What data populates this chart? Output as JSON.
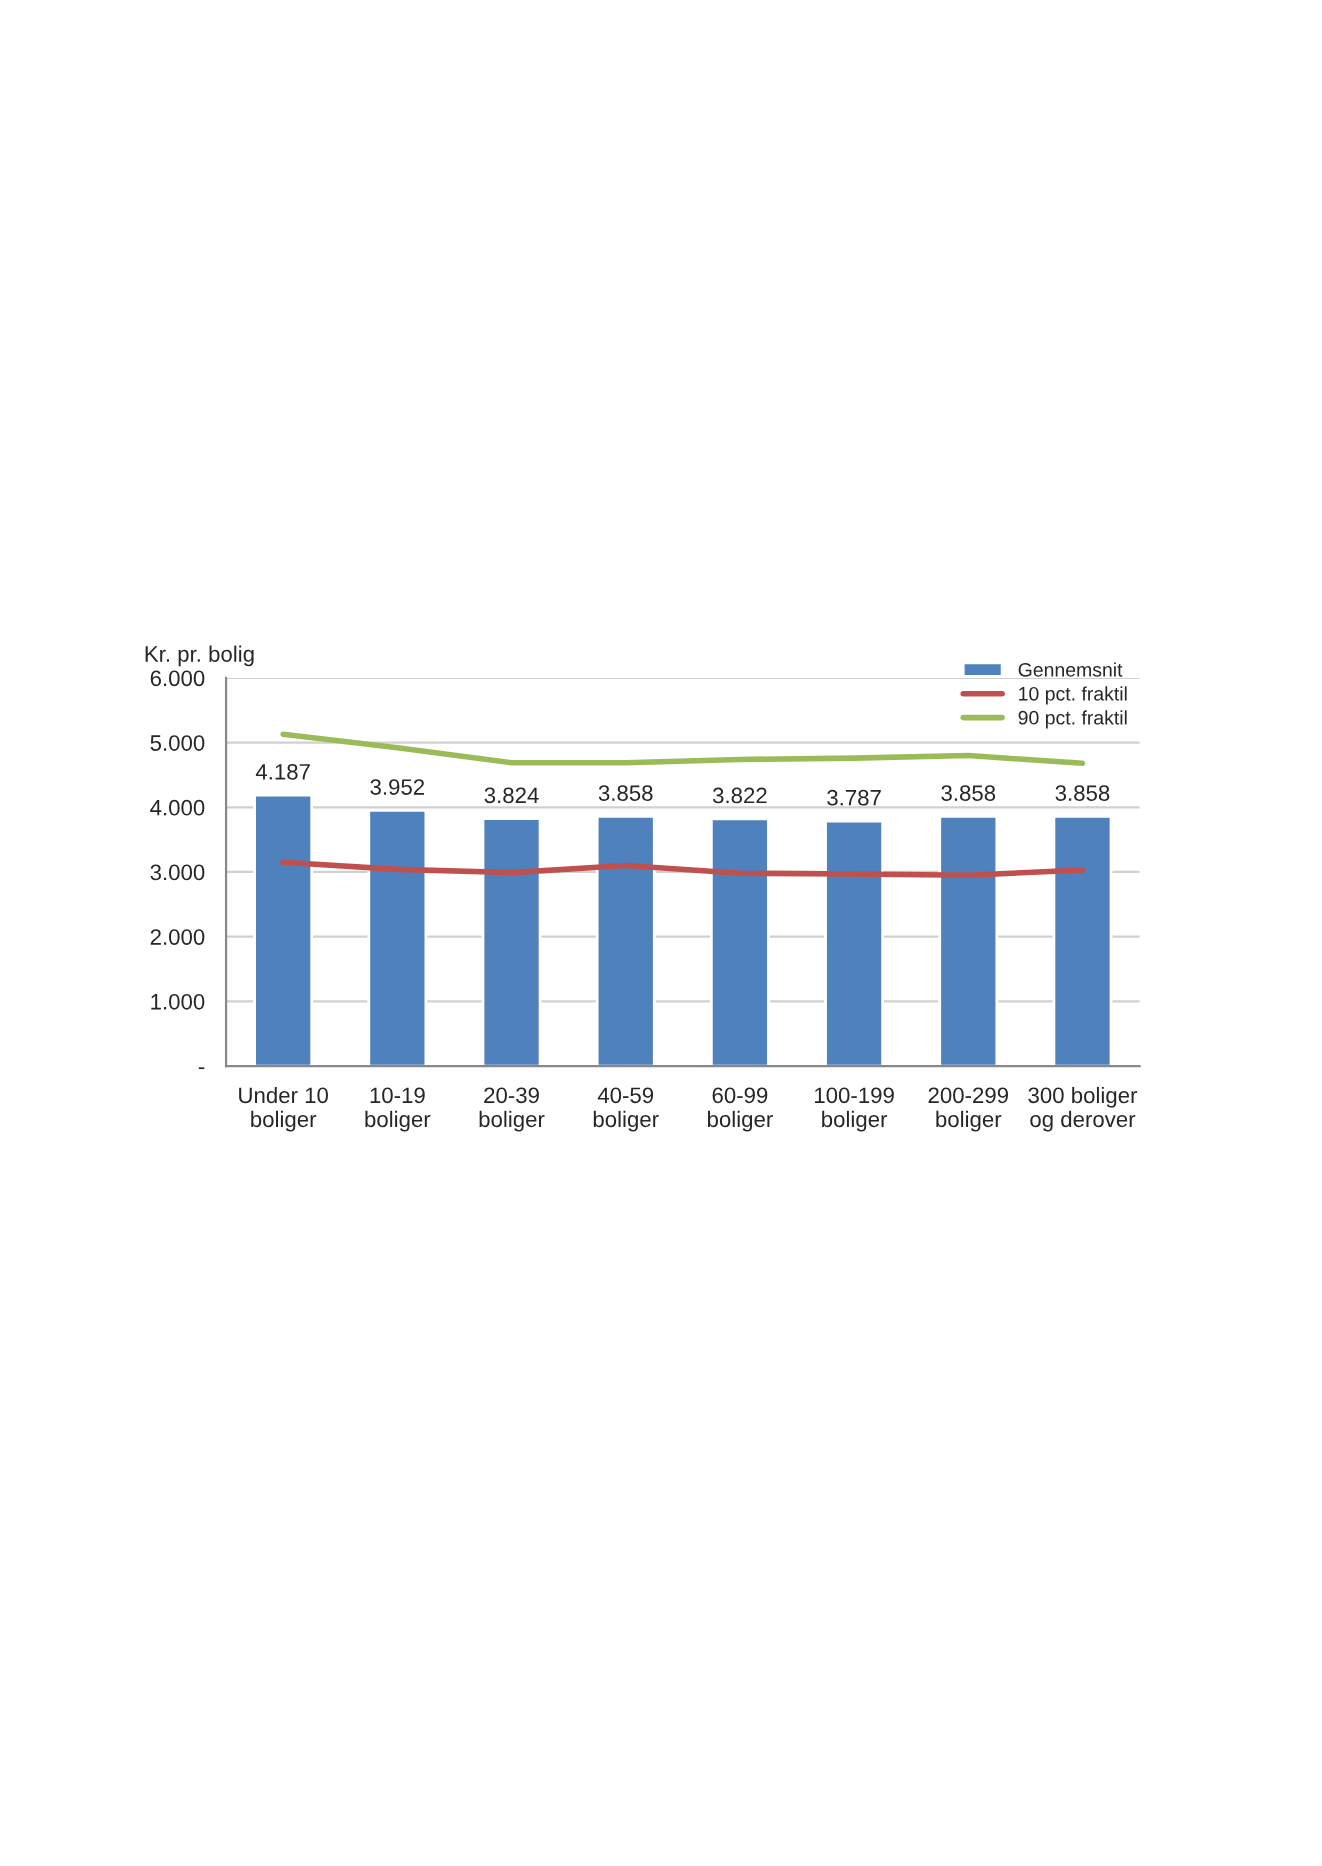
{
  "chart_data": {
    "type": "bar",
    "ylabel": "Kr. pr. bolig",
    "categories": [
      "Under 10\nboliger",
      "10-19\nboliger",
      "20-39\nboliger",
      "40-59\nboliger",
      "60-99\nboliger",
      "100-199\nboliger",
      "200-299\nboliger",
      "300 boliger\nog derover"
    ],
    "series": [
      {
        "name": "Gennemsnit",
        "color": "#4f81bd",
        "values": [
          4187,
          3952,
          3824,
          3858,
          3822,
          3787,
          3858,
          3858
        ],
        "value_labels": [
          "4.187",
          "3.952",
          "3.824",
          "3.858",
          "3.822",
          "3.787",
          "3.858",
          "3.858"
        ]
      },
      {
        "name": "10 pct. fraktil",
        "type": "line",
        "color": "#c0504d",
        "values": [
          3150,
          3040,
          2990,
          3100,
          2980,
          2970,
          2950,
          3030
        ]
      },
      {
        "name": "90 pct. fraktil",
        "type": "line",
        "color": "#9bbb59",
        "values": [
          5130,
          4920,
          4690,
          4690,
          4740,
          4760,
          4800,
          4680
        ]
      }
    ],
    "ylim": [
      0,
      6000
    ],
    "yticks": [
      {
        "value": 0,
        "label": "-"
      },
      {
        "value": 1000,
        "label": "1.000"
      },
      {
        "value": 2000,
        "label": "2.000"
      },
      {
        "value": 3000,
        "label": "3.000"
      },
      {
        "value": 4000,
        "label": "4.000"
      },
      {
        "value": 5000,
        "label": "5.000"
      },
      {
        "value": 6000,
        "label": "6.000"
      }
    ],
    "grid": "y",
    "legend": "top right",
    "marker": "none",
    "line_style": "solid"
  }
}
